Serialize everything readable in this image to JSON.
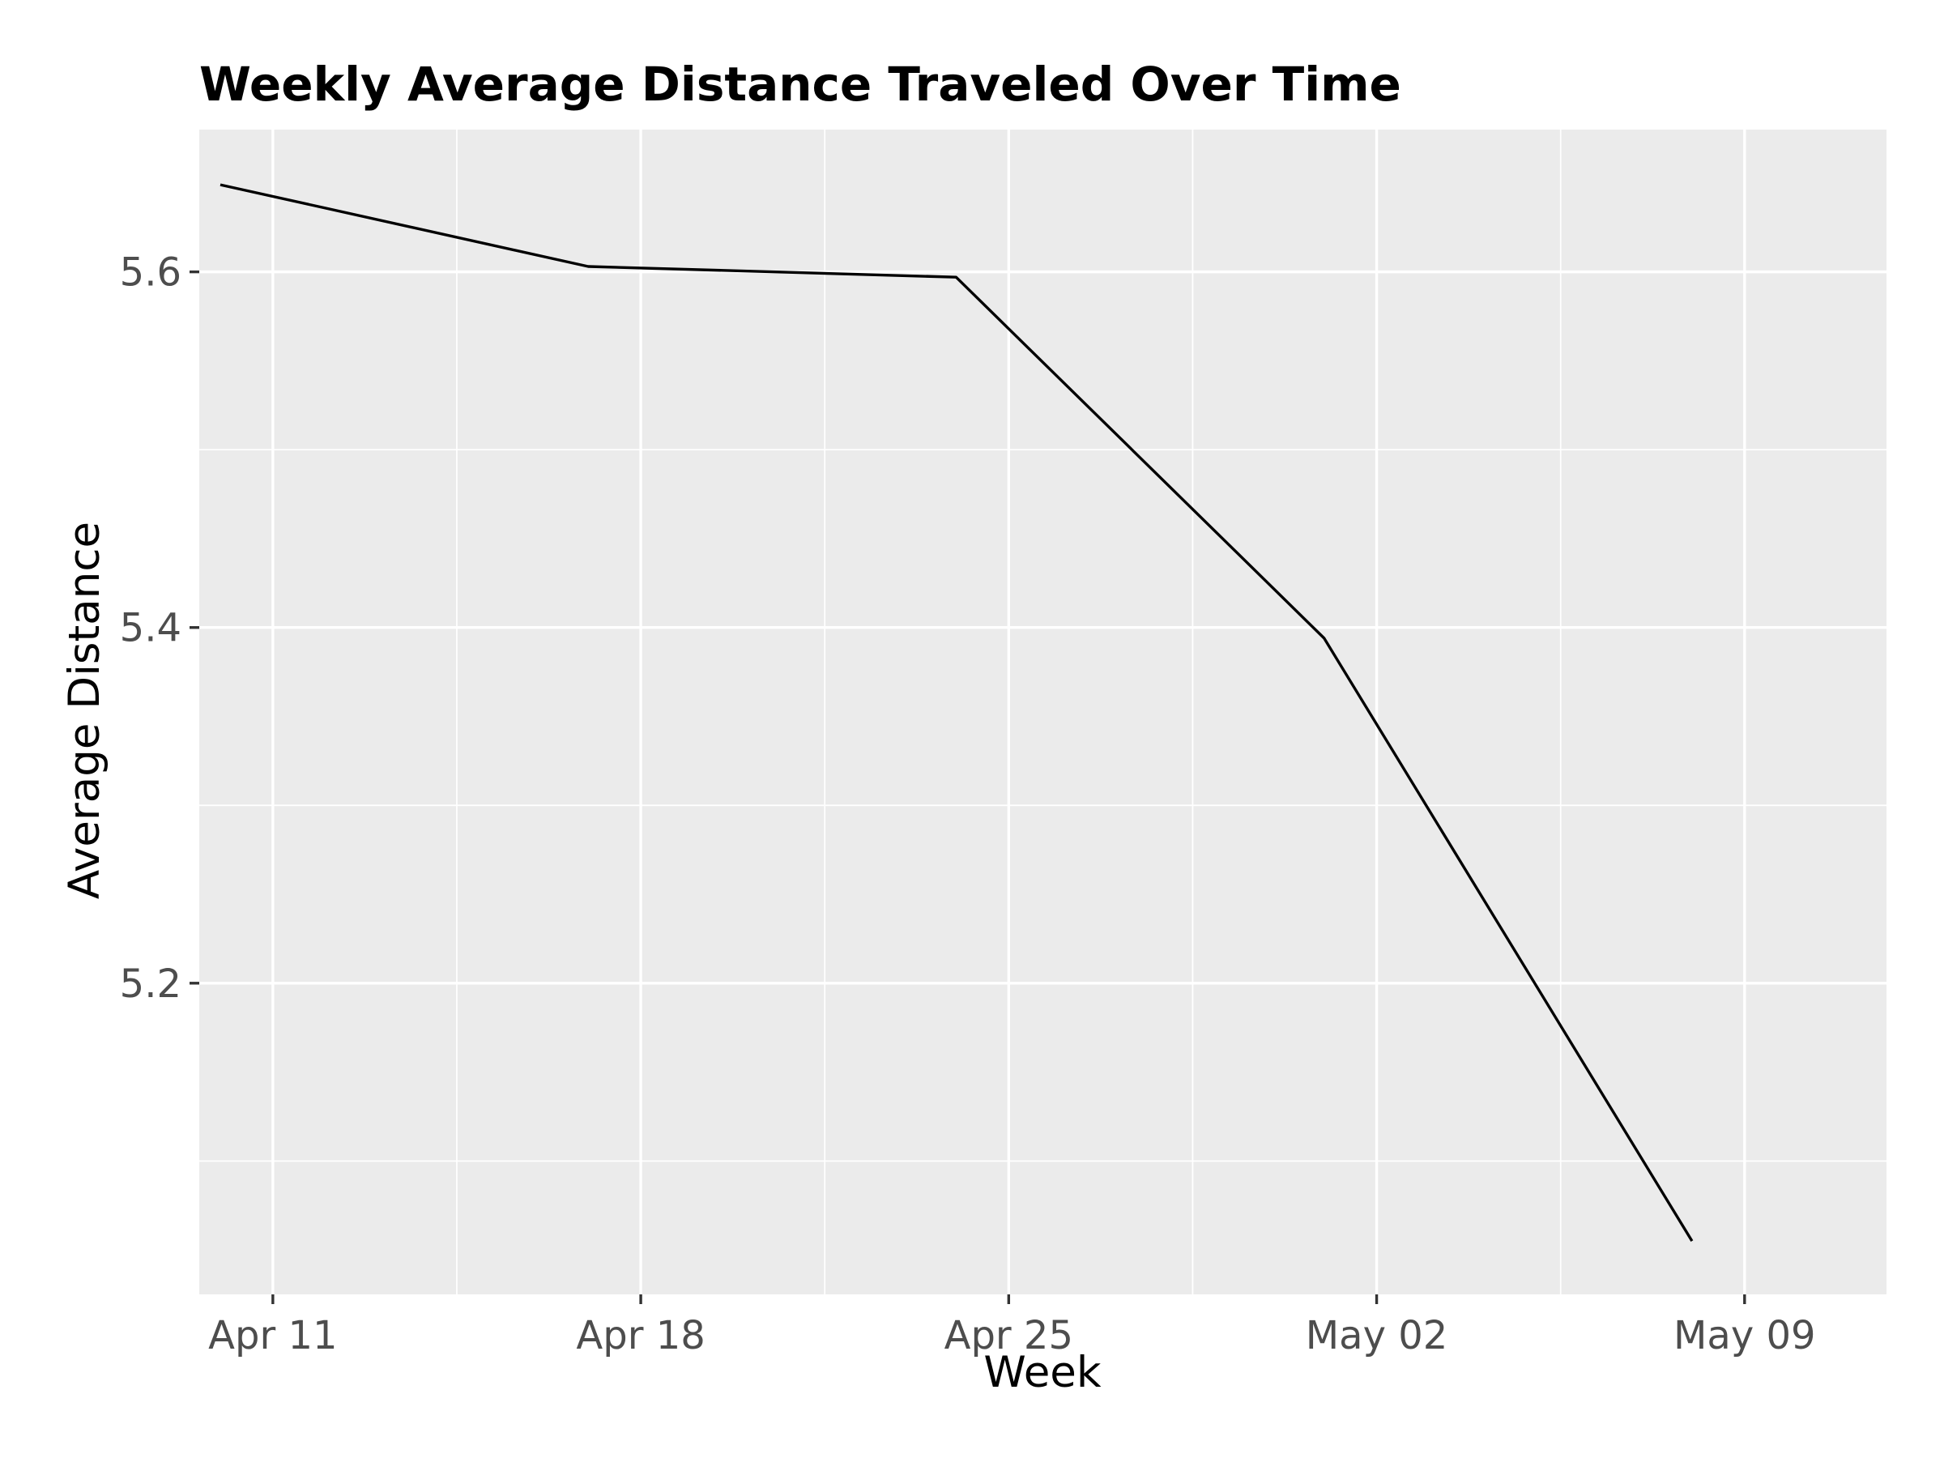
{
  "chart_data": {
    "type": "line",
    "title": "Weekly Average Distance Traveled Over Time",
    "xlabel": "Week",
    "ylabel": "Average Distance",
    "x_axis": {
      "type": "date",
      "range_days": [
        -1.4,
        30.7
      ],
      "ticks": [
        {
          "day": 0,
          "label": "Apr 11"
        },
        {
          "day": 7,
          "label": "Apr 18"
        },
        {
          "day": 14,
          "label": "Apr 25"
        },
        {
          "day": 21,
          "label": "May 02"
        },
        {
          "day": 28,
          "label": "May 09"
        }
      ],
      "minor_ticks_days": [
        3.5,
        10.5,
        17.5,
        24.5
      ]
    },
    "y_axis": {
      "ylim": [
        5.025,
        5.68
      ],
      "ticks": [
        {
          "value": 5.2,
          "label": "5.2"
        },
        {
          "value": 5.4,
          "label": "5.4"
        },
        {
          "value": 5.6,
          "label": "5.6"
        }
      ],
      "minor_ticks": [
        5.1,
        5.3,
        5.5
      ]
    },
    "grid": true,
    "legend": "none",
    "series": [
      {
        "name": "Average Distance",
        "color": "#000000",
        "points": [
          {
            "day": -1,
            "label": "Apr 10",
            "y": 5.649
          },
          {
            "day": 6,
            "label": "Apr 17",
            "y": 5.603
          },
          {
            "day": 13,
            "label": "Apr 24",
            "y": 5.597
          },
          {
            "day": 20,
            "label": "May 01",
            "y": 5.394
          },
          {
            "day": 27,
            "label": "May 08",
            "y": 5.055
          }
        ]
      }
    ]
  },
  "colors": {
    "panel_background": "#ebebeb",
    "grid": "#ffffff",
    "tick_text": "#4d4d4d",
    "line": "#000000"
  }
}
